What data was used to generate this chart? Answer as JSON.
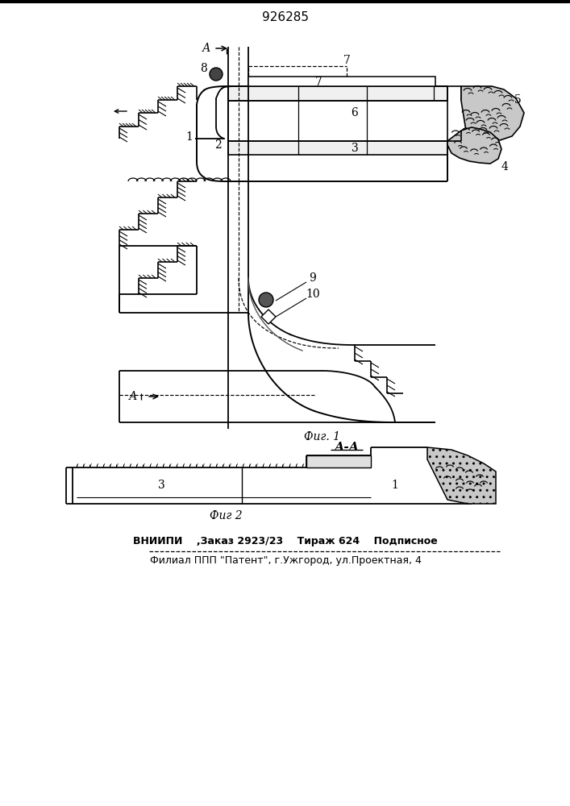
{
  "patent_number": "926285",
  "fig1_caption": "Фиг. 1",
  "fig2_caption": "Фиг 2",
  "section_label": "А-А",
  "footer_line1": "ВНИИПИ    ,Заказ 2923/23    Тираж 624    Подписное",
  "footer_line2": "Филиал ППП \"Патент\", г.Ужгород, ул.Проектная, 4"
}
